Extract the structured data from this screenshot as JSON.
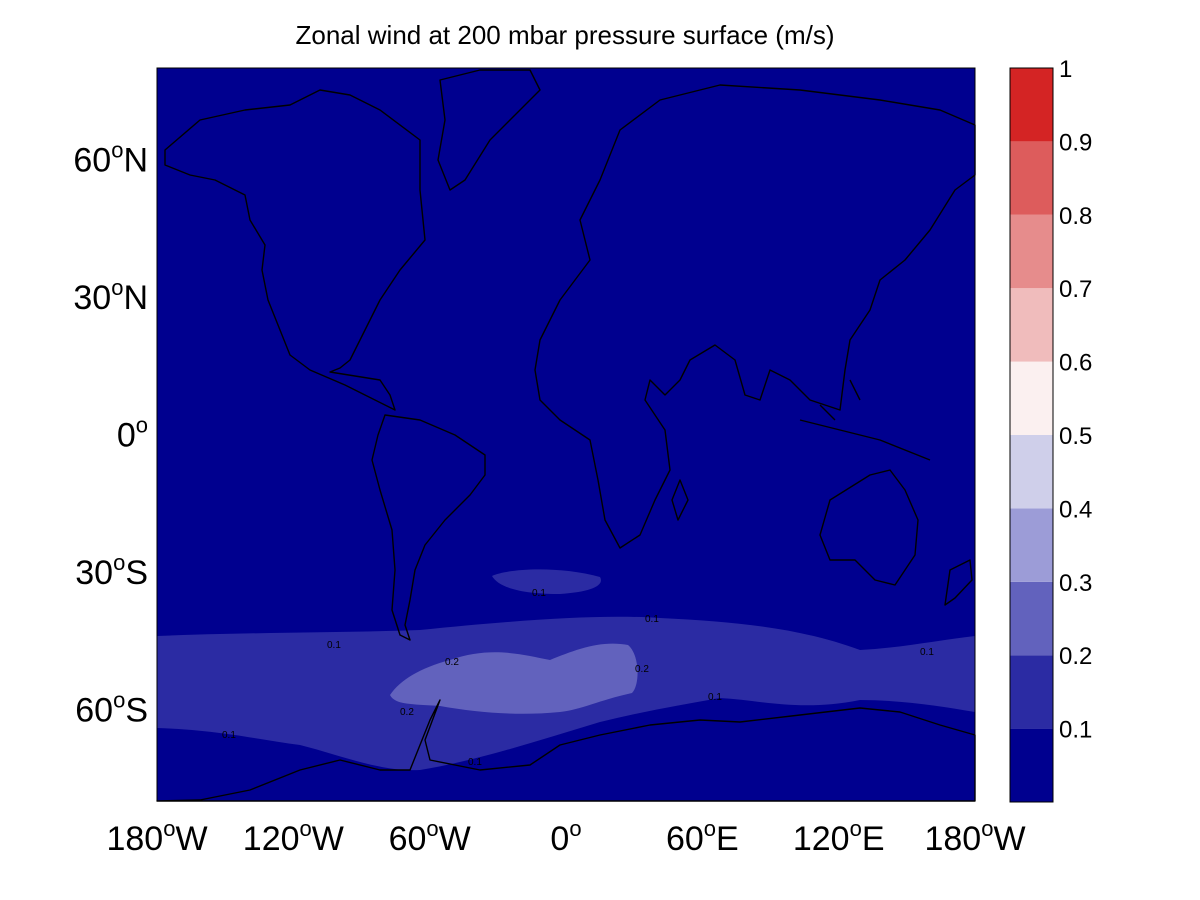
{
  "title": "Zonal wind at 200 mbar pressure surface (m/s)",
  "map": {
    "projection": "equirectangular-like",
    "lon_range": [
      -180,
      180
    ],
    "lat_range": [
      -80,
      80
    ],
    "background_color": "#00008f",
    "coastline_color": "#000000",
    "lon_ticks": [
      {
        "value": -180,
        "deg": "180",
        "hem": "W"
      },
      {
        "value": -120,
        "deg": "120",
        "hem": "W"
      },
      {
        "value": -60,
        "deg": "60",
        "hem": "W"
      },
      {
        "value": 0,
        "deg": "0",
        "hem": ""
      },
      {
        "value": 60,
        "deg": "60",
        "hem": "E"
      },
      {
        "value": 120,
        "deg": "120",
        "hem": "E"
      },
      {
        "value": 180,
        "deg": "180",
        "hem": "W"
      }
    ],
    "lat_ticks": [
      {
        "value": 60,
        "deg": "60",
        "hem": "N"
      },
      {
        "value": 30,
        "deg": "30",
        "hem": "N"
      },
      {
        "value": 0,
        "deg": "0",
        "hem": ""
      },
      {
        "value": -30,
        "deg": "30",
        "hem": "S"
      },
      {
        "value": -60,
        "deg": "60",
        "hem": "S"
      }
    ],
    "contour_labels": [
      "0.1",
      "0.2"
    ]
  },
  "colorbar": {
    "levels": [
      {
        "value": "0.1",
        "color": "#00008f"
      },
      {
        "value": "0.2",
        "color": "#2b2ba3"
      },
      {
        "value": "0.3",
        "color": "#6262bd"
      },
      {
        "value": "0.4",
        "color": "#9c9cd7"
      },
      {
        "value": "0.5",
        "color": "#cfcfea"
      },
      {
        "value": "0.6",
        "color": "#fbf0f0"
      },
      {
        "value": "0.7",
        "color": "#f0bcbc"
      },
      {
        "value": "0.8",
        "color": "#e68c8c"
      },
      {
        "value": "0.9",
        "color": "#dd5c5c"
      },
      {
        "value": "1",
        "color": "#d42424"
      }
    ]
  }
}
